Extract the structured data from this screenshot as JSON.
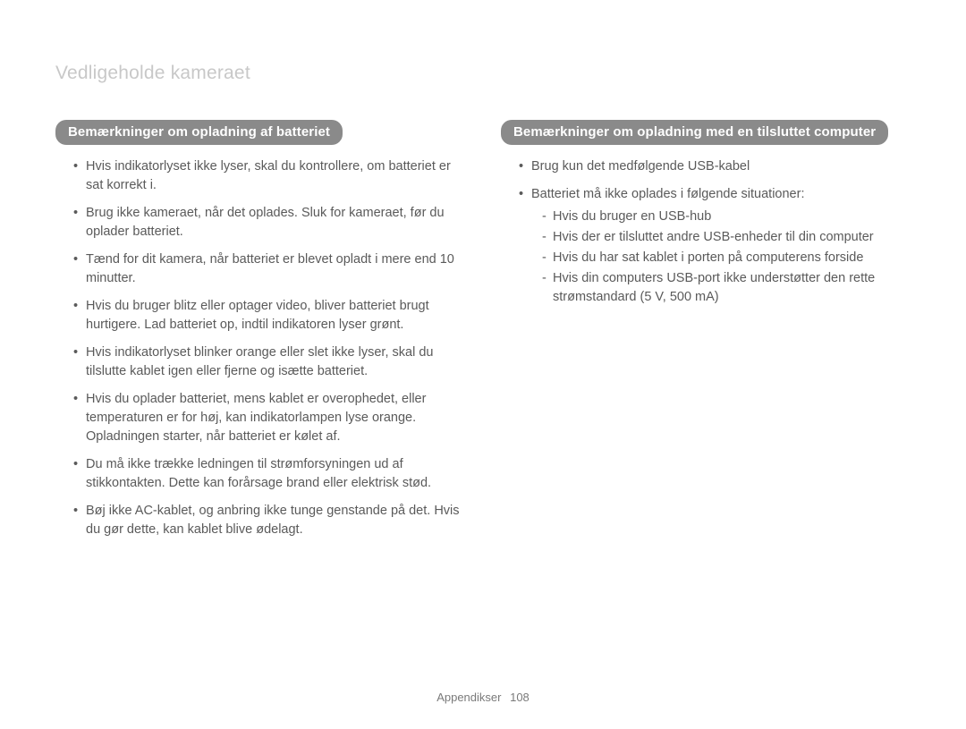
{
  "title": "Vedligeholde kameraet",
  "left": {
    "heading": "Bemærkninger om opladning af batteriet",
    "items": [
      "Hvis indikatorlyset ikke lyser, skal du kontrollere, om batteriet er sat korrekt i.",
      "Brug ikke kameraet, når det oplades. Sluk for kameraet, før du oplader batteriet.",
      "Tænd for dit kamera, når batteriet er blevet opladt i mere end 10 minutter.",
      "Hvis du bruger blitz eller optager video, bliver batteriet brugt hurtigere. Lad batteriet op, indtil indikatoren lyser grønt.",
      "Hvis indikatorlyset blinker orange eller slet ikke lyser, skal du tilslutte kablet igen eller fjerne og isætte batteriet.",
      "Hvis du oplader batteriet, mens kablet er overophedet, eller temperaturen er for høj, kan indikatorlampen lyse orange. Opladningen starter, når batteriet er kølet af.",
      "Du må ikke trække ledningen til strømforsyningen ud af stikkontakten. Dette kan forårsage brand eller elektrisk stød.",
      "Bøj ikke AC-kablet, og anbring ikke tunge genstande på det. Hvis du gør dette, kan kablet blive ødelagt."
    ]
  },
  "right": {
    "heading": "Bemærkninger om opladning med en tilsluttet computer",
    "items": [
      {
        "text": "Brug kun det medfølgende USB-kabel"
      },
      {
        "text": "Batteriet må ikke oplades i følgende situationer:",
        "sub": [
          "Hvis du bruger en USB-hub",
          "Hvis der er tilsluttet andre USB-enheder til din computer",
          "Hvis du har sat kablet i porten på computerens forside",
          "Hvis din computers USB-port ikke understøtter den rette strømstandard (5 V, 500 mA)"
        ]
      }
    ]
  },
  "footer": {
    "section": "Appendikser",
    "page": "108"
  }
}
